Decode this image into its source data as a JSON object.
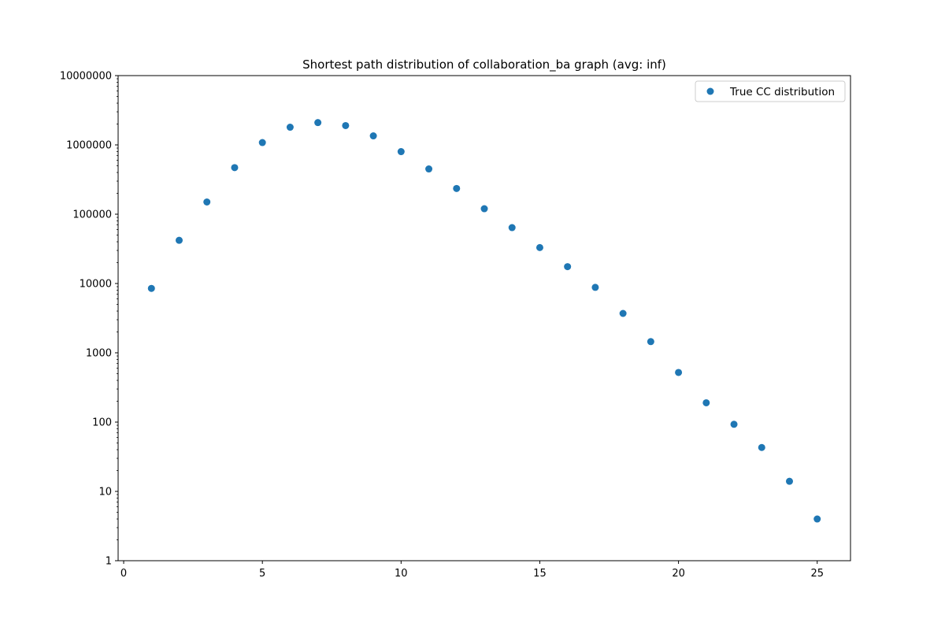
{
  "chart_data": {
    "type": "scatter",
    "title": "Shortest path distribution of collaboration_ba graph (avg: inf)",
    "xlabel": "",
    "ylabel": "",
    "y_scale": "log",
    "xlim": [
      -0.2,
      26.2
    ],
    "ylim": [
      1,
      10000000
    ],
    "x_ticks": [
      0,
      5,
      10,
      15,
      20,
      25
    ],
    "x_tick_labels": [
      "0",
      "5",
      "10",
      "15",
      "20",
      "25"
    ],
    "y_ticks": [
      1,
      10,
      100,
      1000,
      10000,
      100000,
      1000000,
      10000000
    ],
    "y_tick_labels": [
      "1",
      "10",
      "100",
      "1000",
      "10000",
      "100000",
      "1000000",
      "10000000"
    ],
    "grid": false,
    "legend_position": "top-right",
    "series": [
      {
        "name": "True CC distribution",
        "color": "#1f77b4",
        "x": [
          1,
          2,
          3,
          4,
          5,
          6,
          7,
          8,
          9,
          10,
          11,
          12,
          13,
          14,
          15,
          16,
          17,
          18,
          19,
          20,
          21,
          22,
          23,
          24,
          25
        ],
        "y": [
          8500,
          42000,
          150000,
          470000,
          1080000,
          1800000,
          2100000,
          1900000,
          1350000,
          800000,
          450000,
          235000,
          120000,
          64000,
          33000,
          17500,
          8800,
          3700,
          1450,
          520,
          190,
          93,
          43,
          14,
          4
        ]
      }
    ]
  }
}
